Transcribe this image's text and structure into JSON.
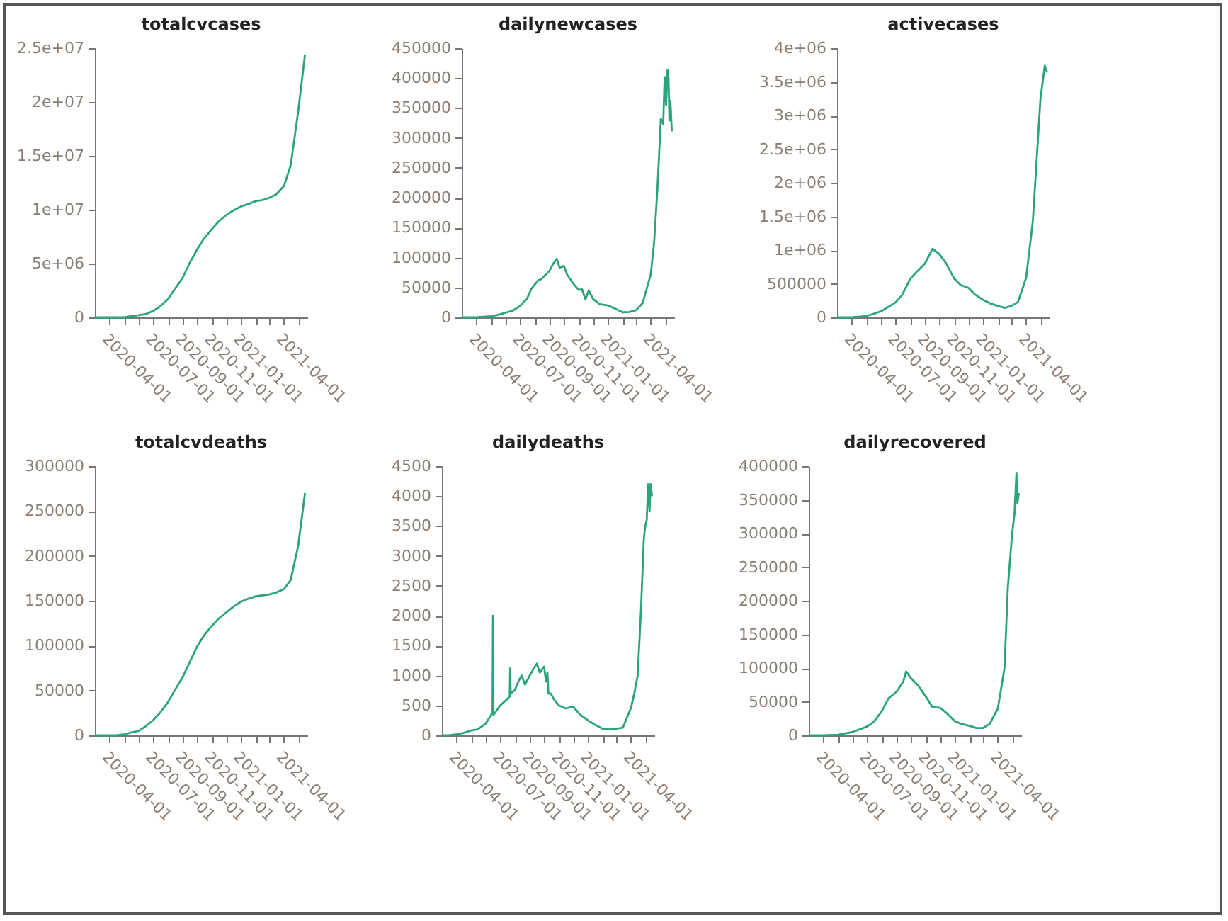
{
  "chart_data": [
    {
      "type": "line",
      "title": "totalcvcases",
      "xlim": [
        "2020-03-01",
        "2021-05-20"
      ],
      "xticks": [
        {
          "value": "2020-04-01",
          "label": "2020-04-01"
        },
        {
          "value": "2020-05-01",
          "label": null
        },
        {
          "value": "2020-06-01",
          "label": null
        },
        {
          "value": "2020-07-01",
          "label": "2020-07-01"
        },
        {
          "value": "2020-08-01",
          "label": null
        },
        {
          "value": "2020-09-01",
          "label": "2020-09-01"
        },
        {
          "value": "2020-10-01",
          "label": null
        },
        {
          "value": "2020-11-01",
          "label": "2020-11-01"
        },
        {
          "value": "2020-12-01",
          "label": null
        },
        {
          "value": "2021-01-01",
          "label": "2021-01-01"
        },
        {
          "value": "2021-02-01",
          "label": null
        },
        {
          "value": "2021-03-01",
          "label": null
        },
        {
          "value": "2021-04-01",
          "label": "2021-04-01"
        },
        {
          "value": "2021-05-01",
          "label": null
        }
      ],
      "ylim": [
        0,
        25000000
      ],
      "yticks": [
        0,
        {
          "value": 5000000,
          "label": "5e+06"
        },
        {
          "value": 10000000,
          "label": "1e+07"
        },
        {
          "value": 15000000,
          "label": "1.5e+07"
        },
        {
          "value": 20000000,
          "label": "2e+07"
        },
        {
          "value": 25000000,
          "label": "2.5e+07"
        }
      ],
      "series": [
        {
          "color": "#2aa57b",
          "x": [
            "2020-03-01",
            "2020-03-15",
            "2020-04-01",
            "2020-04-15",
            "2020-05-01",
            "2020-05-15",
            "2020-06-01",
            "2020-06-15",
            "2020-07-01",
            "2020-07-15",
            "2020-08-01",
            "2020-08-15",
            "2020-09-01",
            "2020-09-15",
            "2020-10-01",
            "2020-10-15",
            "2020-11-01",
            "2020-11-15",
            "2020-12-01",
            "2020-12-15",
            "2021-01-01",
            "2021-01-15",
            "2021-02-01",
            "2021-02-15",
            "2021-03-01",
            "2021-03-15",
            "2021-04-01",
            "2021-04-15",
            "2021-05-01",
            "2021-05-15"
          ],
          "values": [
            0,
            0,
            0,
            0,
            0,
            100000,
            200000,
            300000,
            600000,
            1000000,
            1700000,
            2600000,
            3700000,
            5000000,
            6300000,
            7300000,
            8200000,
            8900000,
            9500000,
            9900000,
            10300000,
            10500000,
            10800000,
            10900000,
            11100000,
            11400000,
            12200000,
            14100000,
            19200000,
            24400000
          ]
        }
      ]
    },
    {
      "type": "line",
      "title": "dailynewcases",
      "xlim": [
        "2020-03-01",
        "2021-05-20"
      ],
      "xticks": [
        {
          "value": "2020-04-01",
          "label": "2020-04-01"
        },
        {
          "value": "2020-05-01",
          "label": null
        },
        {
          "value": "2020-06-01",
          "label": null
        },
        {
          "value": "2020-07-01",
          "label": "2020-07-01"
        },
        {
          "value": "2020-08-01",
          "label": null
        },
        {
          "value": "2020-09-01",
          "label": "2020-09-01"
        },
        {
          "value": "2020-10-01",
          "label": null
        },
        {
          "value": "2020-11-01",
          "label": "2020-11-01"
        },
        {
          "value": "2020-12-01",
          "label": null
        },
        {
          "value": "2021-01-01",
          "label": "2021-01-01"
        },
        {
          "value": "2021-02-01",
          "label": null
        },
        {
          "value": "2021-03-01",
          "label": null
        },
        {
          "value": "2021-04-01",
          "label": "2021-04-01"
        },
        {
          "value": "2021-05-01",
          "label": null
        }
      ],
      "ylim": [
        0,
        450000
      ],
      "yticks": [
        0,
        50000,
        100000,
        150000,
        200000,
        250000,
        300000,
        350000,
        400000,
        450000
      ],
      "series": [
        {
          "color": "#2aa57b",
          "x": [
            "2020-03-02",
            "2020-03-15",
            "2020-04-01",
            "2020-04-15",
            "2020-05-01",
            "2020-05-15",
            "2020-06-01",
            "2020-06-15",
            "2020-07-01",
            "2020-07-10",
            "2020-07-15",
            "2020-07-25",
            "2020-08-01",
            "2020-08-08",
            "2020-08-15",
            "2020-08-22",
            "2020-09-01",
            "2020-09-08",
            "2020-09-16",
            "2020-09-22",
            "2020-10-01",
            "2020-10-08",
            "2020-10-15",
            "2020-10-22",
            "2020-11-01",
            "2020-11-08",
            "2020-11-15",
            "2020-11-22",
            "2020-12-01",
            "2020-12-15",
            "2021-01-01",
            "2021-01-15",
            "2021-02-01",
            "2021-02-15",
            "2021-03-01",
            "2021-03-15",
            "2021-04-01",
            "2021-04-08",
            "2021-04-15",
            "2021-04-22",
            "2021-04-27",
            "2021-04-30",
            "2021-05-03",
            "2021-05-06",
            "2021-05-08",
            "2021-05-10",
            "2021-05-12",
            "2021-05-15"
          ],
          "values": [
            0,
            0,
            0,
            1000,
            2000,
            4000,
            8000,
            11000,
            19000,
            27000,
            30000,
            48000,
            55000,
            62000,
            64000,
            70000,
            78000,
            89000,
            97900,
            83000,
            86000,
            71000,
            63000,
            55000,
            46000,
            47000,
            30000,
            45000,
            31000,
            22000,
            20000,
            15000,
            8600,
            9000,
            12000,
            24000,
            72000,
            126000,
            217000,
            332000,
            323000,
            402000,
            355000,
            414000,
            401000,
            329000,
            362000,
            311000
          ]
        }
      ]
    },
    {
      "type": "line",
      "title": "activecases",
      "xlim": [
        "2020-03-01",
        "2021-05-20"
      ],
      "xticks": [
        {
          "value": "2020-04-01",
          "label": "2020-04-01"
        },
        {
          "value": "2020-05-01",
          "label": null
        },
        {
          "value": "2020-06-01",
          "label": null
        },
        {
          "value": "2020-07-01",
          "label": "2020-07-01"
        },
        {
          "value": "2020-08-01",
          "label": null
        },
        {
          "value": "2020-09-01",
          "label": "2020-09-01"
        },
        {
          "value": "2020-10-01",
          "label": null
        },
        {
          "value": "2020-11-01",
          "label": "2020-11-01"
        },
        {
          "value": "2020-12-01",
          "label": null
        },
        {
          "value": "2021-01-01",
          "label": "2021-01-01"
        },
        {
          "value": "2021-02-01",
          "label": null
        },
        {
          "value": "2021-03-01",
          "label": null
        },
        {
          "value": "2021-04-01",
          "label": "2021-04-01"
        },
        {
          "value": "2021-05-01",
          "label": null
        }
      ],
      "ylim": [
        0,
        4000000
      ],
      "yticks": [
        0,
        500000,
        {
          "value": 1000000,
          "label": "1e+06"
        },
        {
          "value": 1500000,
          "label": "1.5e+06"
        },
        {
          "value": 2000000,
          "label": "2e+06"
        },
        {
          "value": 2500000,
          "label": "2.5e+06"
        },
        {
          "value": 3000000,
          "label": "3e+06"
        },
        {
          "value": 3500000,
          "label": "3.5e+06"
        },
        {
          "value": 4000000,
          "label": "4e+06"
        }
      ],
      "series": [
        {
          "color": "#2aa57b",
          "x": [
            "2020-03-01",
            "2020-03-15",
            "2020-04-01",
            "2020-04-15",
            "2020-05-01",
            "2020-05-15",
            "2020-06-01",
            "2020-06-15",
            "2020-07-01",
            "2020-07-15",
            "2020-08-01",
            "2020-08-15",
            "2020-09-01",
            "2020-09-17",
            "2020-10-01",
            "2020-10-15",
            "2020-11-01",
            "2020-11-15",
            "2020-12-01",
            "2020-12-15",
            "2021-01-01",
            "2021-01-15",
            "2021-02-01",
            "2021-02-15",
            "2021-03-01",
            "2021-03-15",
            "2021-04-01",
            "2021-04-15",
            "2021-05-01",
            "2021-05-10",
            "2021-05-15"
          ],
          "values": [
            0,
            0,
            0,
            10000,
            20000,
            50000,
            90000,
            150000,
            220000,
            330000,
            570000,
            680000,
            800000,
            1020000,
            940000,
            810000,
            580000,
            480000,
            440000,
            340000,
            260000,
            210000,
            170000,
            140000,
            170000,
            230000,
            590000,
            1430000,
            3250000,
            3740000,
            3640000
          ]
        }
      ]
    },
    {
      "type": "line",
      "title": "totalcvdeaths",
      "xlim": [
        "2020-03-01",
        "2021-05-20"
      ],
      "xticks": [
        {
          "value": "2020-04-01",
          "label": "2020-04-01"
        },
        {
          "value": "2020-05-01",
          "label": null
        },
        {
          "value": "2020-06-01",
          "label": null
        },
        {
          "value": "2020-07-01",
          "label": "2020-07-01"
        },
        {
          "value": "2020-08-01",
          "label": null
        },
        {
          "value": "2020-09-01",
          "label": "2020-09-01"
        },
        {
          "value": "2020-10-01",
          "label": null
        },
        {
          "value": "2020-11-01",
          "label": "2020-11-01"
        },
        {
          "value": "2020-12-01",
          "label": null
        },
        {
          "value": "2021-01-01",
          "label": "2021-01-01"
        },
        {
          "value": "2021-02-01",
          "label": null
        },
        {
          "value": "2021-03-01",
          "label": null
        },
        {
          "value": "2021-04-01",
          "label": "2021-04-01"
        },
        {
          "value": "2021-05-01",
          "label": null
        }
      ],
      "ylim": [
        0,
        300000
      ],
      "yticks": [
        0,
        50000,
        100000,
        150000,
        200000,
        250000,
        300000
      ],
      "series": [
        {
          "color": "#2aa57b",
          "x": [
            "2020-03-01",
            "2020-03-15",
            "2020-04-01",
            "2020-04-15",
            "2020-05-01",
            "2020-05-15",
            "2020-06-01",
            "2020-06-15",
            "2020-07-01",
            "2020-07-15",
            "2020-08-01",
            "2020-08-15",
            "2020-09-01",
            "2020-09-15",
            "2020-10-01",
            "2020-10-15",
            "2020-11-01",
            "2020-11-15",
            "2020-12-01",
            "2020-12-15",
            "2021-01-01",
            "2021-01-15",
            "2021-02-01",
            "2021-02-15",
            "2021-03-01",
            "2021-03-15",
            "2021-04-01",
            "2021-04-15",
            "2021-05-01",
            "2021-05-15"
          ],
          "values": [
            0,
            0,
            0,
            0,
            1000,
            3000,
            5000,
            10000,
            17000,
            25000,
            37000,
            50000,
            65000,
            81000,
            99000,
            111000,
            122000,
            130000,
            137000,
            143000,
            149000,
            152000,
            155000,
            156000,
            157000,
            159000,
            163000,
            173000,
            212000,
            270000
          ]
        }
      ]
    },
    {
      "type": "line",
      "title": "dailydeaths",
      "xlim": [
        "2020-03-01",
        "2021-05-20"
      ],
      "xticks": [
        {
          "value": "2020-04-01",
          "label": "2020-04-01"
        },
        {
          "value": "2020-05-01",
          "label": null
        },
        {
          "value": "2020-06-01",
          "label": null
        },
        {
          "value": "2020-07-01",
          "label": "2020-07-01"
        },
        {
          "value": "2020-08-01",
          "label": null
        },
        {
          "value": "2020-09-01",
          "label": "2020-09-01"
        },
        {
          "value": "2020-10-01",
          "label": null
        },
        {
          "value": "2020-11-01",
          "label": "2020-11-01"
        },
        {
          "value": "2020-12-01",
          "label": null
        },
        {
          "value": "2021-01-01",
          "label": "2021-01-01"
        },
        {
          "value": "2021-02-01",
          "label": null
        },
        {
          "value": "2021-03-01",
          "label": null
        },
        {
          "value": "2021-04-01",
          "label": "2021-04-01"
        },
        {
          "value": "2021-05-01",
          "label": null
        }
      ],
      "ylim": [
        0,
        4500
      ],
      "yticks": [
        0,
        500,
        1000,
        1500,
        2000,
        2500,
        3000,
        3500,
        4000,
        4500
      ],
      "series": [
        {
          "color": "#2aa57b",
          "x": [
            "2020-03-02",
            "2020-03-15",
            "2020-04-01",
            "2020-04-15",
            "2020-05-01",
            "2020-05-15",
            "2020-06-01",
            "2020-06-15",
            "2020-06-16",
            "2020-06-17",
            "2020-07-01",
            "2020-07-15",
            "2020-07-21",
            "2020-07-22",
            "2020-07-23",
            "2020-08-01",
            "2020-08-08",
            "2020-08-15",
            "2020-08-22",
            "2020-09-01",
            "2020-09-08",
            "2020-09-16",
            "2020-09-22",
            "2020-10-01",
            "2020-10-05",
            "2020-10-08",
            "2020-10-10",
            "2020-10-15",
            "2020-10-22",
            "2020-11-01",
            "2020-11-15",
            "2020-12-01",
            "2020-12-15",
            "2021-01-01",
            "2021-01-15",
            "2021-02-01",
            "2021-02-15",
            "2021-03-01",
            "2021-03-15",
            "2021-04-01",
            "2021-04-08",
            "2021-04-15",
            "2021-04-22",
            "2021-04-28",
            "2021-05-01",
            "2021-05-04",
            "2021-05-07",
            "2021-05-10",
            "2021-05-12",
            "2021-05-15"
          ],
          "values": [
            0,
            0,
            20,
            40,
            80,
            100,
            200,
            380,
            2000,
            340,
            500,
            600,
            650,
            1120,
            700,
            760,
            900,
            1000,
            850,
            1000,
            1100,
            1200,
            1050,
            1150,
            900,
            1050,
            700,
            700,
            600,
            500,
            450,
            480,
            350,
            250,
            180,
            110,
            100,
            110,
            130,
            460,
            700,
            1000,
            2100,
            3290,
            3500,
            3600,
            4200,
            3750,
            4200,
            4000
          ]
        }
      ]
    },
    {
      "type": "line",
      "title": "dailyrecovered",
      "xlim": [
        "2020-03-01",
        "2021-05-20"
      ],
      "xticks": [
        {
          "value": "2020-04-01",
          "label": "2020-04-01"
        },
        {
          "value": "2020-05-01",
          "label": null
        },
        {
          "value": "2020-06-01",
          "label": null
        },
        {
          "value": "2020-07-01",
          "label": "2020-07-01"
        },
        {
          "value": "2020-08-01",
          "label": null
        },
        {
          "value": "2020-09-01",
          "label": "2020-09-01"
        },
        {
          "value": "2020-10-01",
          "label": null
        },
        {
          "value": "2020-11-01",
          "label": "2020-11-01"
        },
        {
          "value": "2020-12-01",
          "label": null
        },
        {
          "value": "2021-01-01",
          "label": "2021-01-01"
        },
        {
          "value": "2021-02-01",
          "label": null
        },
        {
          "value": "2021-03-01",
          "label": null
        },
        {
          "value": "2021-04-01",
          "label": "2021-04-01"
        },
        {
          "value": "2021-05-01",
          "label": null
        }
      ],
      "ylim": [
        0,
        400000
      ],
      "yticks": [
        0,
        50000,
        100000,
        150000,
        200000,
        250000,
        300000,
        350000,
        400000
      ],
      "series": [
        {
          "color": "#2aa57b",
          "x": [
            "2020-03-02",
            "2020-04-01",
            "2020-05-01",
            "2020-06-01",
            "2020-07-01",
            "2020-07-15",
            "2020-08-01",
            "2020-08-15",
            "2020-09-01",
            "2020-09-15",
            "2020-09-21",
            "2020-10-01",
            "2020-10-15",
            "2020-11-01",
            "2020-11-15",
            "2020-12-01",
            "2020-12-15",
            "2021-01-01",
            "2021-01-15",
            "2021-02-01",
            "2021-02-15",
            "2021-03-01",
            "2021-03-15",
            "2021-04-01",
            "2021-04-15",
            "2021-04-22",
            "2021-05-01",
            "2021-05-06",
            "2021-05-10",
            "2021-05-12",
            "2021-05-15"
          ],
          "values": [
            0,
            0,
            1000,
            5000,
            13000,
            20000,
            36000,
            55000,
            65000,
            80000,
            95000,
            85000,
            75000,
            58000,
            42000,
            41000,
            33000,
            21000,
            17000,
            14000,
            11000,
            11000,
            17000,
            40000,
            100000,
            220000,
            300000,
            330000,
            390000,
            345000,
            360000
          ]
        }
      ]
    }
  ]
}
